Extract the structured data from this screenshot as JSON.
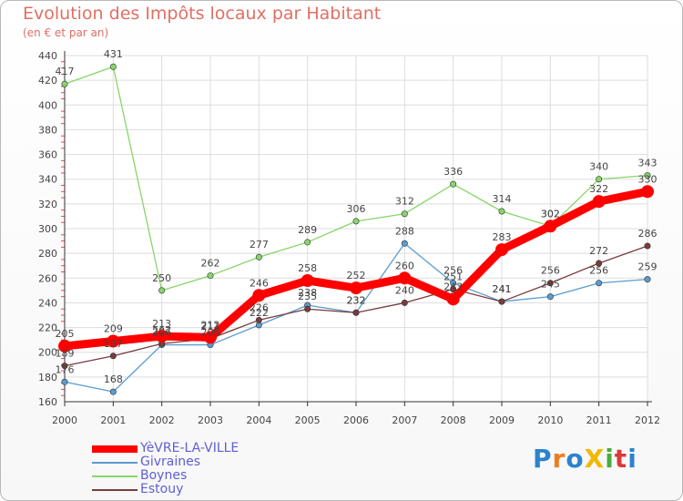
{
  "header": {
    "title": "Evolution des Impôts locaux par Habitant",
    "subtitle": "(en € et par an)"
  },
  "logo": {
    "text": "ProXiti",
    "letters": [
      "P",
      "r",
      "o",
      "X",
      "i",
      "t",
      "i"
    ],
    "colors": [
      "#2a83cd",
      "#f07c1e",
      "#2a83cd",
      "#f2b700",
      "#4bab3c",
      "#d83a3a",
      "#2a83cd"
    ]
  },
  "chart_data": {
    "type": "line",
    "title": "Evolution des Impôts locaux par Habitant",
    "subtitle": "(en € et par an)",
    "xlabel": "",
    "ylabel": "",
    "x": [
      "2000",
      "2001",
      "2002",
      "2003",
      "2004",
      "2005",
      "2006",
      "2007",
      "2008",
      "2009",
      "2010",
      "2011",
      "2012"
    ],
    "ylim": [
      160,
      440
    ],
    "yticks": [
      "160",
      "180",
      "200",
      "220",
      "240",
      "260",
      "280",
      "300",
      "320",
      "340",
      "360",
      "380",
      "400",
      "420",
      "440"
    ],
    "grid": true,
    "legend_position": "bottom-left",
    "series": [
      {
        "name": "Boynes",
        "color": "#88d56b",
        "values": [
          417,
          431,
          250,
          262,
          277,
          289,
          306,
          312,
          336,
          314,
          302,
          340,
          343
        ],
        "labels": [
          "417",
          "431",
          "250",
          "262",
          "277",
          "289",
          "306",
          "312",
          "336",
          "314",
          "302",
          "340",
          "343"
        ]
      },
      {
        "name": "Givraines",
        "color": "#5b9ccf",
        "values": [
          176,
          168,
          206,
          206,
          222,
          238,
          232,
          288,
          256,
          241,
          245,
          256,
          259
        ],
        "labels": [
          "176",
          "168",
          "206",
          "206",
          "222",
          "238",
          "232",
          "288",
          "256",
          "241",
          "245",
          "256",
          "259"
        ]
      },
      {
        "name": "Estouy",
        "color": "#7a3c3c",
        "values": [
          189,
          197,
          207,
          211,
          226,
          235,
          232,
          240,
          251,
          241,
          256,
          272,
          286
        ],
        "labels": [
          "189",
          "197",
          "207",
          "211",
          "226",
          "235",
          "232",
          "240",
          "251",
          "241",
          "256",
          "272",
          "286"
        ]
      },
      {
        "name": "YèVRE-LA-VILLE",
        "color": "#ff0000",
        "values": [
          205,
          209,
          213,
          212,
          246,
          258,
          252,
          260,
          243,
          283,
          302,
          322,
          330
        ],
        "labels": [
          "205",
          "209",
          "213",
          "212",
          "246",
          "258",
          "252",
          "260",
          "243",
          "283",
          "302",
          "322",
          "330"
        ]
      }
    ],
    "legend": [
      "YèVRE-LA-VILLE",
      "Givraines",
      "Boynes",
      "Estouy"
    ]
  }
}
